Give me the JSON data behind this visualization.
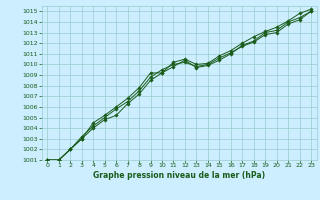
{
  "title": "Graphe pression niveau de la mer (hPa)",
  "bg_color": "#cceeff",
  "grid_color": "#99cccc",
  "line_color": "#1a5c1a",
  "marker_color": "#1a5c1a",
  "xlim": [
    -0.5,
    23.5
  ],
  "ylim": [
    1001,
    1015.5
  ],
  "xticks": [
    0,
    1,
    2,
    3,
    4,
    5,
    6,
    7,
    8,
    9,
    10,
    11,
    12,
    13,
    14,
    15,
    16,
    17,
    18,
    19,
    20,
    21,
    22,
    23
  ],
  "yticks": [
    1001,
    1002,
    1003,
    1004,
    1005,
    1006,
    1007,
    1008,
    1009,
    1010,
    1011,
    1012,
    1013,
    1014,
    1015
  ],
  "series1_x": [
    0,
    1,
    2,
    3,
    4,
    5,
    6,
    7,
    8,
    9,
    10,
    11,
    12,
    13,
    14,
    15,
    16,
    17,
    18,
    19,
    20,
    21,
    22,
    23
  ],
  "series1_y": [
    1001,
    1001,
    1002,
    1003,
    1004,
    1004.8,
    1005.2,
    1006.3,
    1007.2,
    1008.5,
    1009.2,
    1009.8,
    1010.4,
    1009.7,
    1009.9,
    1010.4,
    1011.0,
    1011.8,
    1012.2,
    1013.0,
    1013.2,
    1014.0,
    1014.4,
    1015.0
  ],
  "series2_x": [
    0,
    1,
    2,
    3,
    4,
    5,
    6,
    7,
    8,
    9,
    10,
    11,
    12,
    13,
    14,
    15,
    16,
    17,
    18,
    19,
    20,
    21,
    22,
    23
  ],
  "series2_y": [
    1001,
    1001,
    1002,
    1003,
    1004.5,
    1005.2,
    1006.0,
    1006.8,
    1007.8,
    1009.2,
    1009.2,
    1010.2,
    1010.5,
    1010.0,
    1010.1,
    1010.8,
    1011.3,
    1012.0,
    1012.6,
    1013.1,
    1013.5,
    1014.1,
    1014.8,
    1015.2
  ],
  "series3_x": [
    0,
    1,
    2,
    3,
    4,
    5,
    6,
    7,
    8,
    9,
    10,
    11,
    12,
    13,
    14,
    15,
    16,
    17,
    18,
    19,
    20,
    21,
    22,
    23
  ],
  "series3_y": [
    1001,
    1001,
    1002,
    1003.2,
    1004.2,
    1005.0,
    1005.8,
    1006.5,
    1007.5,
    1008.8,
    1009.5,
    1010.0,
    1010.2,
    1009.8,
    1010.0,
    1010.6,
    1011.1,
    1011.7,
    1012.1,
    1012.8,
    1013.0,
    1013.8,
    1014.2,
    1015.0
  ]
}
